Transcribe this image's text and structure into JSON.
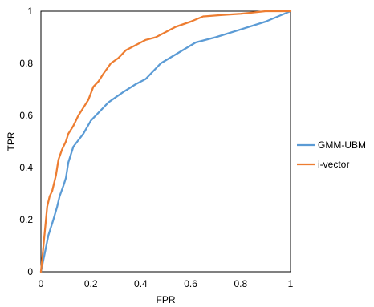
{
  "chart_data": {
    "type": "line",
    "title": "",
    "xlabel": "FPR",
    "ylabel": "TPR",
    "xlim": [
      0,
      1
    ],
    "ylim": [
      0,
      1
    ],
    "x_ticks": [
      "0",
      "0.2",
      "0.4",
      "0.6",
      "0.8",
      "1"
    ],
    "y_ticks": [
      "0",
      "0.2",
      "0.4",
      "0.6",
      "0.8",
      "1"
    ],
    "grid": false,
    "legend_position": "right",
    "series": [
      {
        "name": "GMM-UBM",
        "color": "#5b9bd5",
        "points": [
          [
            0,
            0
          ],
          [
            0.015,
            0.07
          ],
          [
            0.03,
            0.14
          ],
          [
            0.05,
            0.2
          ],
          [
            0.065,
            0.25
          ],
          [
            0.075,
            0.29
          ],
          [
            0.09,
            0.33
          ],
          [
            0.1,
            0.36
          ],
          [
            0.11,
            0.42
          ],
          [
            0.13,
            0.48
          ],
          [
            0.17,
            0.53
          ],
          [
            0.2,
            0.58
          ],
          [
            0.23,
            0.61
          ],
          [
            0.27,
            0.65
          ],
          [
            0.33,
            0.69
          ],
          [
            0.38,
            0.72
          ],
          [
            0.42,
            0.74
          ],
          [
            0.48,
            0.8
          ],
          [
            0.55,
            0.84
          ],
          [
            0.62,
            0.88
          ],
          [
            0.7,
            0.9
          ],
          [
            0.8,
            0.93
          ],
          [
            0.9,
            0.96
          ],
          [
            1,
            1
          ]
        ]
      },
      {
        "name": "i-vector",
        "color": "#ed7d31",
        "points": [
          [
            0,
            0
          ],
          [
            0.005,
            0.05
          ],
          [
            0.015,
            0.15
          ],
          [
            0.025,
            0.25
          ],
          [
            0.035,
            0.29
          ],
          [
            0.045,
            0.31
          ],
          [
            0.06,
            0.37
          ],
          [
            0.07,
            0.43
          ],
          [
            0.085,
            0.47
          ],
          [
            0.1,
            0.5
          ],
          [
            0.11,
            0.53
          ],
          [
            0.13,
            0.56
          ],
          [
            0.15,
            0.6
          ],
          [
            0.17,
            0.63
          ],
          [
            0.19,
            0.66
          ],
          [
            0.21,
            0.71
          ],
          [
            0.23,
            0.73
          ],
          [
            0.25,
            0.76
          ],
          [
            0.28,
            0.8
          ],
          [
            0.31,
            0.82
          ],
          [
            0.34,
            0.85
          ],
          [
            0.38,
            0.87
          ],
          [
            0.42,
            0.89
          ],
          [
            0.46,
            0.9
          ],
          [
            0.5,
            0.92
          ],
          [
            0.54,
            0.94
          ],
          [
            0.6,
            0.96
          ],
          [
            0.65,
            0.98
          ],
          [
            0.72,
            0.985
          ],
          [
            0.8,
            0.99
          ],
          [
            0.9,
            1
          ],
          [
            1,
            1
          ]
        ]
      }
    ]
  }
}
